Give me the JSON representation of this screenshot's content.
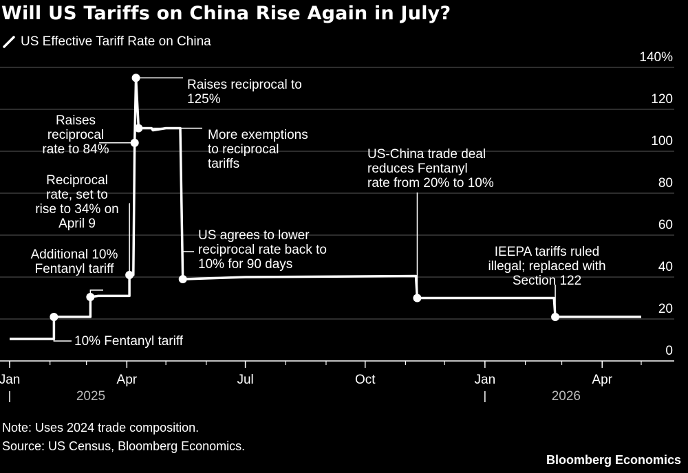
{
  "title": "Will US Tariffs on China Rise Again in July?",
  "legend_label": "US Effective Tariff Rate on China",
  "note": "Note: Uses 2024 trade composition.",
  "source": "Source: US Census, Bloomberg Economics.",
  "brand": "Bloomberg Economics",
  "chart_data": {
    "type": "line",
    "title": "Will US Tariffs on China Rise Again in July?",
    "series": [
      {
        "name": "US Effective Tariff Rate on China",
        "color": "#ffffff",
        "points": [
          {
            "x": "2025-01-01",
            "y": 10.5
          },
          {
            "x": "2025-02-04",
            "y": 10.5
          },
          {
            "x": "2025-02-04",
            "y": 21
          },
          {
            "x": "2025-03-04",
            "y": 21
          },
          {
            "x": "2025-03-04",
            "y": 30.5
          },
          {
            "x": "2025-03-10",
            "y": 31
          },
          {
            "x": "2025-04-03",
            "y": 31
          },
          {
            "x": "2025-04-03",
            "y": 41
          },
          {
            "x": "2025-04-06",
            "y": 41
          },
          {
            "x": "2025-04-07",
            "y": 104
          },
          {
            "x": "2025-04-08",
            "y": 135
          },
          {
            "x": "2025-04-10",
            "y": 111
          },
          {
            "x": "2025-04-20",
            "y": 111
          },
          {
            "x": "2025-04-21",
            "y": 110
          },
          {
            "x": "2025-05-01",
            "y": 111
          },
          {
            "x": "2025-05-12",
            "y": 111
          },
          {
            "x": "2025-05-14",
            "y": 39
          },
          {
            "x": "2025-07-01",
            "y": 40
          },
          {
            "x": "2025-11-09",
            "y": 40.5
          },
          {
            "x": "2025-11-10",
            "y": 30
          },
          {
            "x": "2026-02-23",
            "y": 30
          },
          {
            "x": "2026-02-24",
            "y": 21
          },
          {
            "x": "2026-05-01",
            "y": 21
          }
        ]
      }
    ],
    "markers": [
      {
        "x": "2025-02-04",
        "y": 21,
        "label": "10% Fentanyl tariff"
      },
      {
        "x": "2025-03-04",
        "y": 30.5,
        "label": "Additional 10% Fentanyl tariff"
      },
      {
        "x": "2025-04-03",
        "y": 41,
        "label": "Reciprocal rate, set to rise to 34% on April 9"
      },
      {
        "x": "2025-04-07",
        "y": 104,
        "label": "Raises reciprocal rate to 84%"
      },
      {
        "x": "2025-04-08",
        "y": 135,
        "label": "Raises reciprocal to 125%"
      },
      {
        "x": "2025-04-10",
        "y": 111,
        "label": "More exemptions to reciprocal tariffs"
      },
      {
        "x": "2025-05-14",
        "y": 39,
        "label": "US agrees to lower reciprocal rate back to 10% for 90 days"
      },
      {
        "x": "2025-11-10",
        "y": 30,
        "label": "US-China trade deal reduces Fentanyl rate from 20% to 10%"
      },
      {
        "x": "2026-02-24",
        "y": 21,
        "label": "IEEPA tariffs ruled illegal; replaced with Section 122"
      }
    ],
    "x_ticks": [
      {
        "x": "2025-01-01",
        "label": "Jan"
      },
      {
        "x": "2025-04-01",
        "label": "Apr"
      },
      {
        "x": "2025-07-01",
        "label": "Jul"
      },
      {
        "x": "2025-10-01",
        "label": "Oct"
      },
      {
        "x": "2026-01-01",
        "label": "Jan"
      },
      {
        "x": "2026-04-01",
        "label": "Apr"
      }
    ],
    "year_labels": [
      {
        "x": "2025-01-01",
        "label": "2025"
      },
      {
        "x": "2026-01-01",
        "label": "2026"
      }
    ],
    "y_ticks": [
      0,
      20,
      40,
      60,
      80,
      100,
      120,
      140
    ],
    "y_tick_labels": [
      "0",
      "20",
      "40",
      "60",
      "80",
      "100",
      "120",
      "140%"
    ],
    "ylim": [
      0,
      140
    ],
    "xlim": [
      "2025-01-01",
      "2026-05-01"
    ],
    "grid": true,
    "xlabel": "",
    "ylabel": ""
  }
}
